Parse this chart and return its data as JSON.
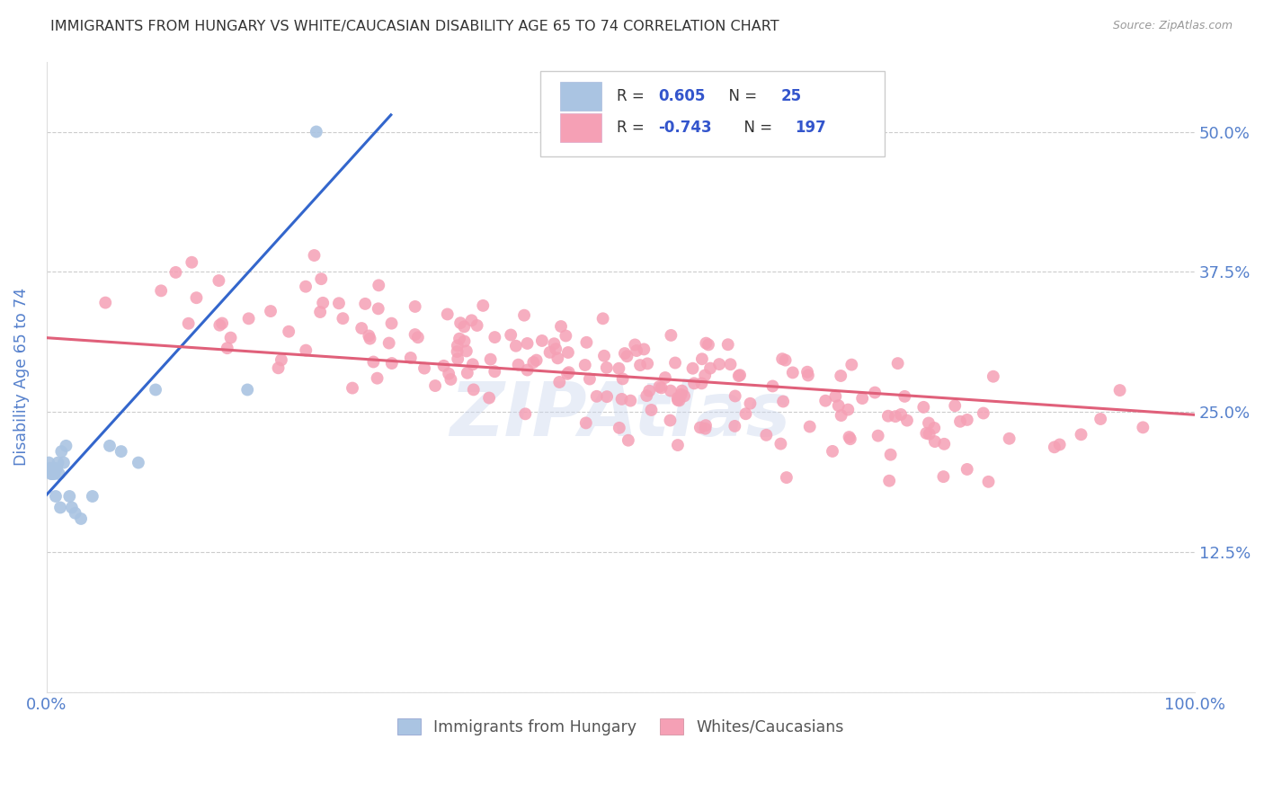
{
  "title": "IMMIGRANTS FROM HUNGARY VS WHITE/CAUCASIAN DISABILITY AGE 65 TO 74 CORRELATION CHART",
  "source": "Source: ZipAtlas.com",
  "ylabel": "Disability Age 65 to 74",
  "xmin": 0.0,
  "xmax": 1.0,
  "ymin": 0.0,
  "ymax": 0.5625,
  "yticks": [
    0.0,
    0.125,
    0.25,
    0.375,
    0.5
  ],
  "ytick_labels": [
    "",
    "12.5%",
    "25.0%",
    "37.5%",
    "50.0%"
  ],
  "xticks": [
    0.0,
    0.2,
    0.4,
    0.6,
    0.8,
    1.0
  ],
  "xtick_labels": [
    "0.0%",
    "",
    "",
    "",
    "",
    "100.0%"
  ],
  "r_blue": 0.605,
  "n_blue": 25,
  "r_pink": -0.743,
  "n_pink": 197,
  "blue_color": "#aac4e2",
  "blue_line_color": "#3366cc",
  "pink_color": "#f5a0b5",
  "pink_line_color": "#e0607a",
  "legend_blue_label": "Immigrants from Hungary",
  "legend_pink_label": "Whites/Caucasians",
  "watermark": "ZIPAtlas",
  "background_color": "#ffffff",
  "grid_color": "#cccccc",
  "title_color": "#333333",
  "axis_label_color": "#5580cc",
  "tick_label_color": "#5580cc",
  "legend_text_color": "#333333",
  "legend_value_color": "#3355cc"
}
